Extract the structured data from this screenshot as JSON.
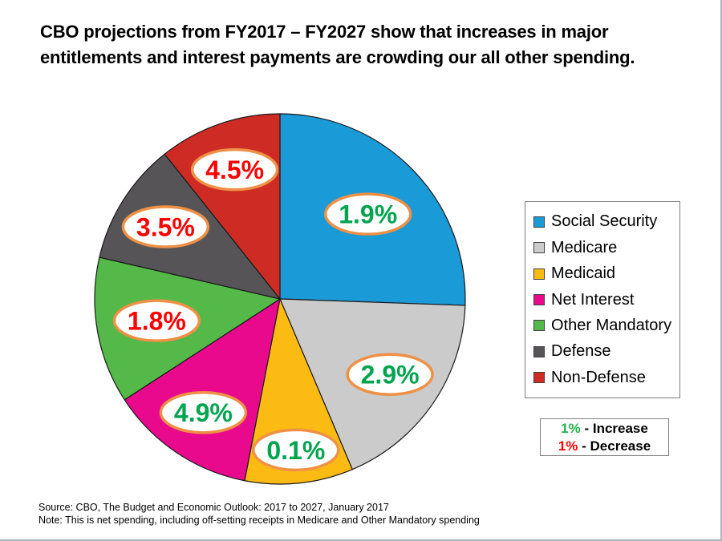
{
  "page": {
    "title_line1": "CBO projections from FY2017 – FY2027 show that increases in major",
    "title_line2": "entitlements and interest payments are crowding our all other spending.",
    "source_line1": "Source: CBO, The Budget and Economic Outlook: 2017 to 2027, January 2017",
    "source_line2": "Note: This is net spending, including off-setting receipts in Medicare and Other Mandatory spending"
  },
  "chart_data": {
    "type": "pie",
    "title": "CBO projections from FY2017 – FY2027 show that increases in major entitlements and interest payments are crowding our all other spending.",
    "legend_position": "right",
    "start_angle_deg": 0,
    "direction": "clockwise",
    "slice_outline_color": "#1A1A1A",
    "callout_style": {
      "fill": "#FFFFFF",
      "border": "#EE9045",
      "increase_text_color": "#00A44F",
      "decrease_text_color": "#FF0000"
    },
    "slices": [
      {
        "name": "Social Security",
        "color": "#1B9AD8",
        "slice_angle_deg": 92.0,
        "share_pct": 25.6,
        "growth_label": "1.9%",
        "growth_value": 1.9,
        "direction": "increase",
        "label_r": 0.66
      },
      {
        "name": "Medicare",
        "color": "#CBCBCB",
        "slice_angle_deg": 65.0,
        "share_pct": 18.1,
        "growth_label": "2.9%",
        "growth_value": 2.9,
        "direction": "increase",
        "label_r": 0.72
      },
      {
        "name": "Medicaid",
        "color": "#FCBB13",
        "slice_angle_deg": 34.0,
        "share_pct": 9.4,
        "growth_label": "0.1%",
        "growth_value": 0.1,
        "direction": "increase",
        "label_r": 0.82
      },
      {
        "name": "Net Interest",
        "color": "#E9098D",
        "slice_angle_deg": 46.0,
        "share_pct": 12.8,
        "growth_label": "4.9%",
        "growth_value": 4.9,
        "direction": "increase",
        "label_r": 0.74
      },
      {
        "name": "Other Mandatory",
        "color": "#54B948",
        "slice_angle_deg": 46.0,
        "share_pct": 12.8,
        "growth_label": "1.8%",
        "growth_value": 1.8,
        "direction": "decrease",
        "label_r": 0.675
      },
      {
        "name": "Defense",
        "color": "#565456",
        "slice_angle_deg": 38.5,
        "share_pct": 10.7,
        "growth_label": "3.5%",
        "growth_value": 3.5,
        "direction": "decrease",
        "label_r": 0.73
      },
      {
        "name": "Non-Defense",
        "color": "#CE2B24",
        "slice_angle_deg": 38.5,
        "share_pct": 10.7,
        "growth_label": "4.5%",
        "growth_value": 4.5,
        "direction": "decrease",
        "label_r": 0.74
      }
    ]
  },
  "key": {
    "rows": [
      {
        "value": "1%",
        "color": "#22B14C",
        "text": " - Increase"
      },
      {
        "value": "1%",
        "color": "#FF0000",
        "text": " - Decrease"
      }
    ]
  }
}
